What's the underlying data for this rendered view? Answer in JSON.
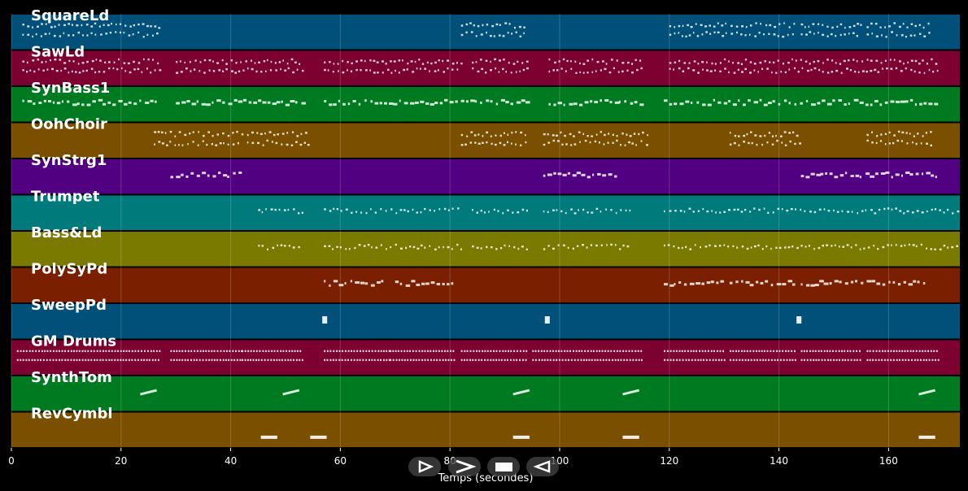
{
  "chart_data": {
    "type": "piano-roll",
    "xlabel": "Temps (secondes)",
    "xlim": [
      0,
      173
    ],
    "xticks": [
      0,
      20,
      40,
      60,
      80,
      100,
      120,
      140,
      160
    ],
    "tracks": [
      {
        "name": "SquareLd",
        "color": "#00507a",
        "segments": [
          [
            2,
            27
          ],
          [
            82,
            94
          ],
          [
            120,
            143
          ],
          [
            144,
            155
          ],
          [
            156,
            168
          ]
        ],
        "rows": 2,
        "style": "dots"
      },
      {
        "name": "SawLd",
        "color": "#7c0030",
        "segments": [
          [
            2,
            27
          ],
          [
            30,
            53
          ],
          [
            57,
            82
          ],
          [
            84,
            94
          ],
          [
            98,
            115
          ],
          [
            120,
            169
          ]
        ],
        "rows": 2,
        "style": "dots"
      },
      {
        "name": "SynBass1",
        "color": "#007a20",
        "segments": [
          [
            2,
            27
          ],
          [
            30,
            53
          ],
          [
            57,
            81
          ],
          [
            82,
            94
          ],
          [
            98,
            115
          ],
          [
            119,
            169
          ]
        ],
        "rows": 1,
        "style": "bars"
      },
      {
        "name": "OohChoir",
        "color": "#7a5000",
        "segments": [
          [
            26,
            42
          ],
          [
            43,
            54
          ],
          [
            82,
            94
          ],
          [
            97,
            116
          ],
          [
            131,
            144
          ],
          [
            156,
            168
          ]
        ],
        "rows": 2,
        "style": "dots"
      },
      {
        "name": "SynStrg1",
        "color": "#500080",
        "segments": [
          [
            29,
            42
          ],
          [
            97,
            110
          ],
          [
            144,
            169
          ]
        ],
        "rows": 1,
        "style": "bars"
      },
      {
        "name": "Trumpet",
        "color": "#007a7a",
        "segments": [
          [
            45,
            53
          ],
          [
            57,
            82
          ],
          [
            84,
            94
          ],
          [
            97,
            113
          ],
          [
            119,
            173
          ]
        ],
        "rows": 1,
        "style": "dots"
      },
      {
        "name": "Bass&Ld",
        "color": "#7a7a00",
        "segments": [
          [
            45,
            53
          ],
          [
            57,
            82
          ],
          [
            84,
            94
          ],
          [
            97,
            113
          ],
          [
            119,
            173
          ]
        ],
        "rows": 1,
        "style": "dots"
      },
      {
        "name": "PolySyPd",
        "color": "#7a2000",
        "segments": [
          [
            57,
            68
          ],
          [
            70,
            81
          ],
          [
            119,
            130
          ],
          [
            131,
            143
          ],
          [
            144,
            155
          ],
          [
            156,
            167
          ]
        ],
        "rows": 1,
        "style": "bars"
      },
      {
        "name": "SweepPd",
        "color": "#00507a",
        "segments": [
          [
            56.7,
            57.6
          ],
          [
            97.3,
            98.2
          ],
          [
            143.2,
            144.1
          ]
        ],
        "rows": 1,
        "style": "block"
      },
      {
        "name": "GM Drums",
        "color": "#7c0030",
        "segments": [
          [
            1,
            27
          ],
          [
            29,
            42
          ],
          [
            42,
            53
          ],
          [
            57,
            69
          ],
          [
            69,
            81
          ],
          [
            82,
            94
          ],
          [
            95,
            115
          ],
          [
            119,
            130
          ],
          [
            131,
            143
          ],
          [
            144,
            155
          ],
          [
            156,
            169
          ]
        ],
        "rows": 2,
        "style": "drums"
      },
      {
        "name": "SynthTom",
        "color": "#007a20",
        "segments": [
          [
            23.5,
            26.5
          ],
          [
            49.5,
            52.5
          ],
          [
            91.5,
            94.5
          ],
          [
            111.5,
            114.5
          ],
          [
            165.5,
            168.5
          ]
        ],
        "rows": 1,
        "style": "rising"
      },
      {
        "name": "RevCymbl",
        "color": "#7a5000",
        "segments": [
          [
            45.5,
            48.5
          ],
          [
            54.5,
            57.5
          ],
          [
            91.5,
            94.5
          ],
          [
            111.5,
            114.5
          ],
          [
            165.5,
            168.5
          ]
        ],
        "rows": 1,
        "style": "block"
      }
    ]
  },
  "controls": [
    {
      "name": "play-button",
      "icon": "play-outline-icon"
    },
    {
      "name": "fast-forward-button",
      "icon": "chevron-right-icon"
    },
    {
      "name": "stop-button",
      "icon": "stop-icon"
    },
    {
      "name": "rewind-button",
      "icon": "rewind-outline-icon"
    }
  ]
}
